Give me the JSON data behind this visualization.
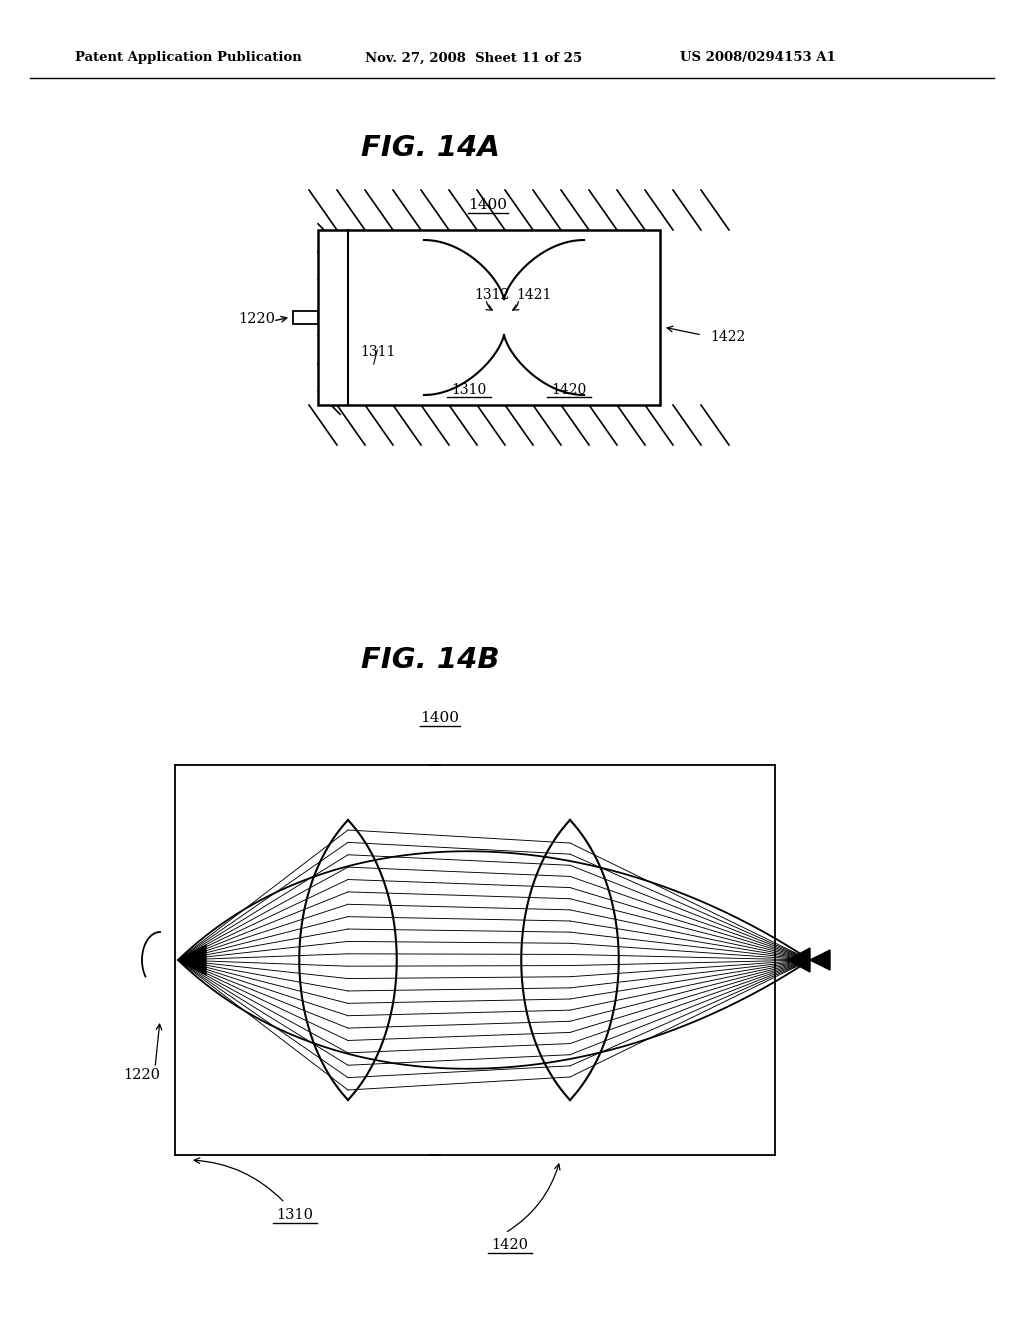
{
  "header_left": "Patent Application Publication",
  "header_mid": "Nov. 27, 2008  Sheet 11 of 25",
  "header_right": "US 2008/0294153 A1",
  "fig1_title": "FIG. 14A",
  "fig2_title": "FIG. 14B",
  "label_1400_1": "1400",
  "label_1400_2": "1400",
  "label_1220_1": "1220",
  "label_1220_2": "1220",
  "label_1310_1": "1310",
  "label_1311": "1311",
  "label_1312": "1312",
  "label_1420_1": "1420",
  "label_1421": "1421",
  "label_1422": "1422",
  "label_1310_2": "1310",
  "label_1420_2": "1420",
  "bg_color": "#ffffff",
  "line_color": "#000000"
}
